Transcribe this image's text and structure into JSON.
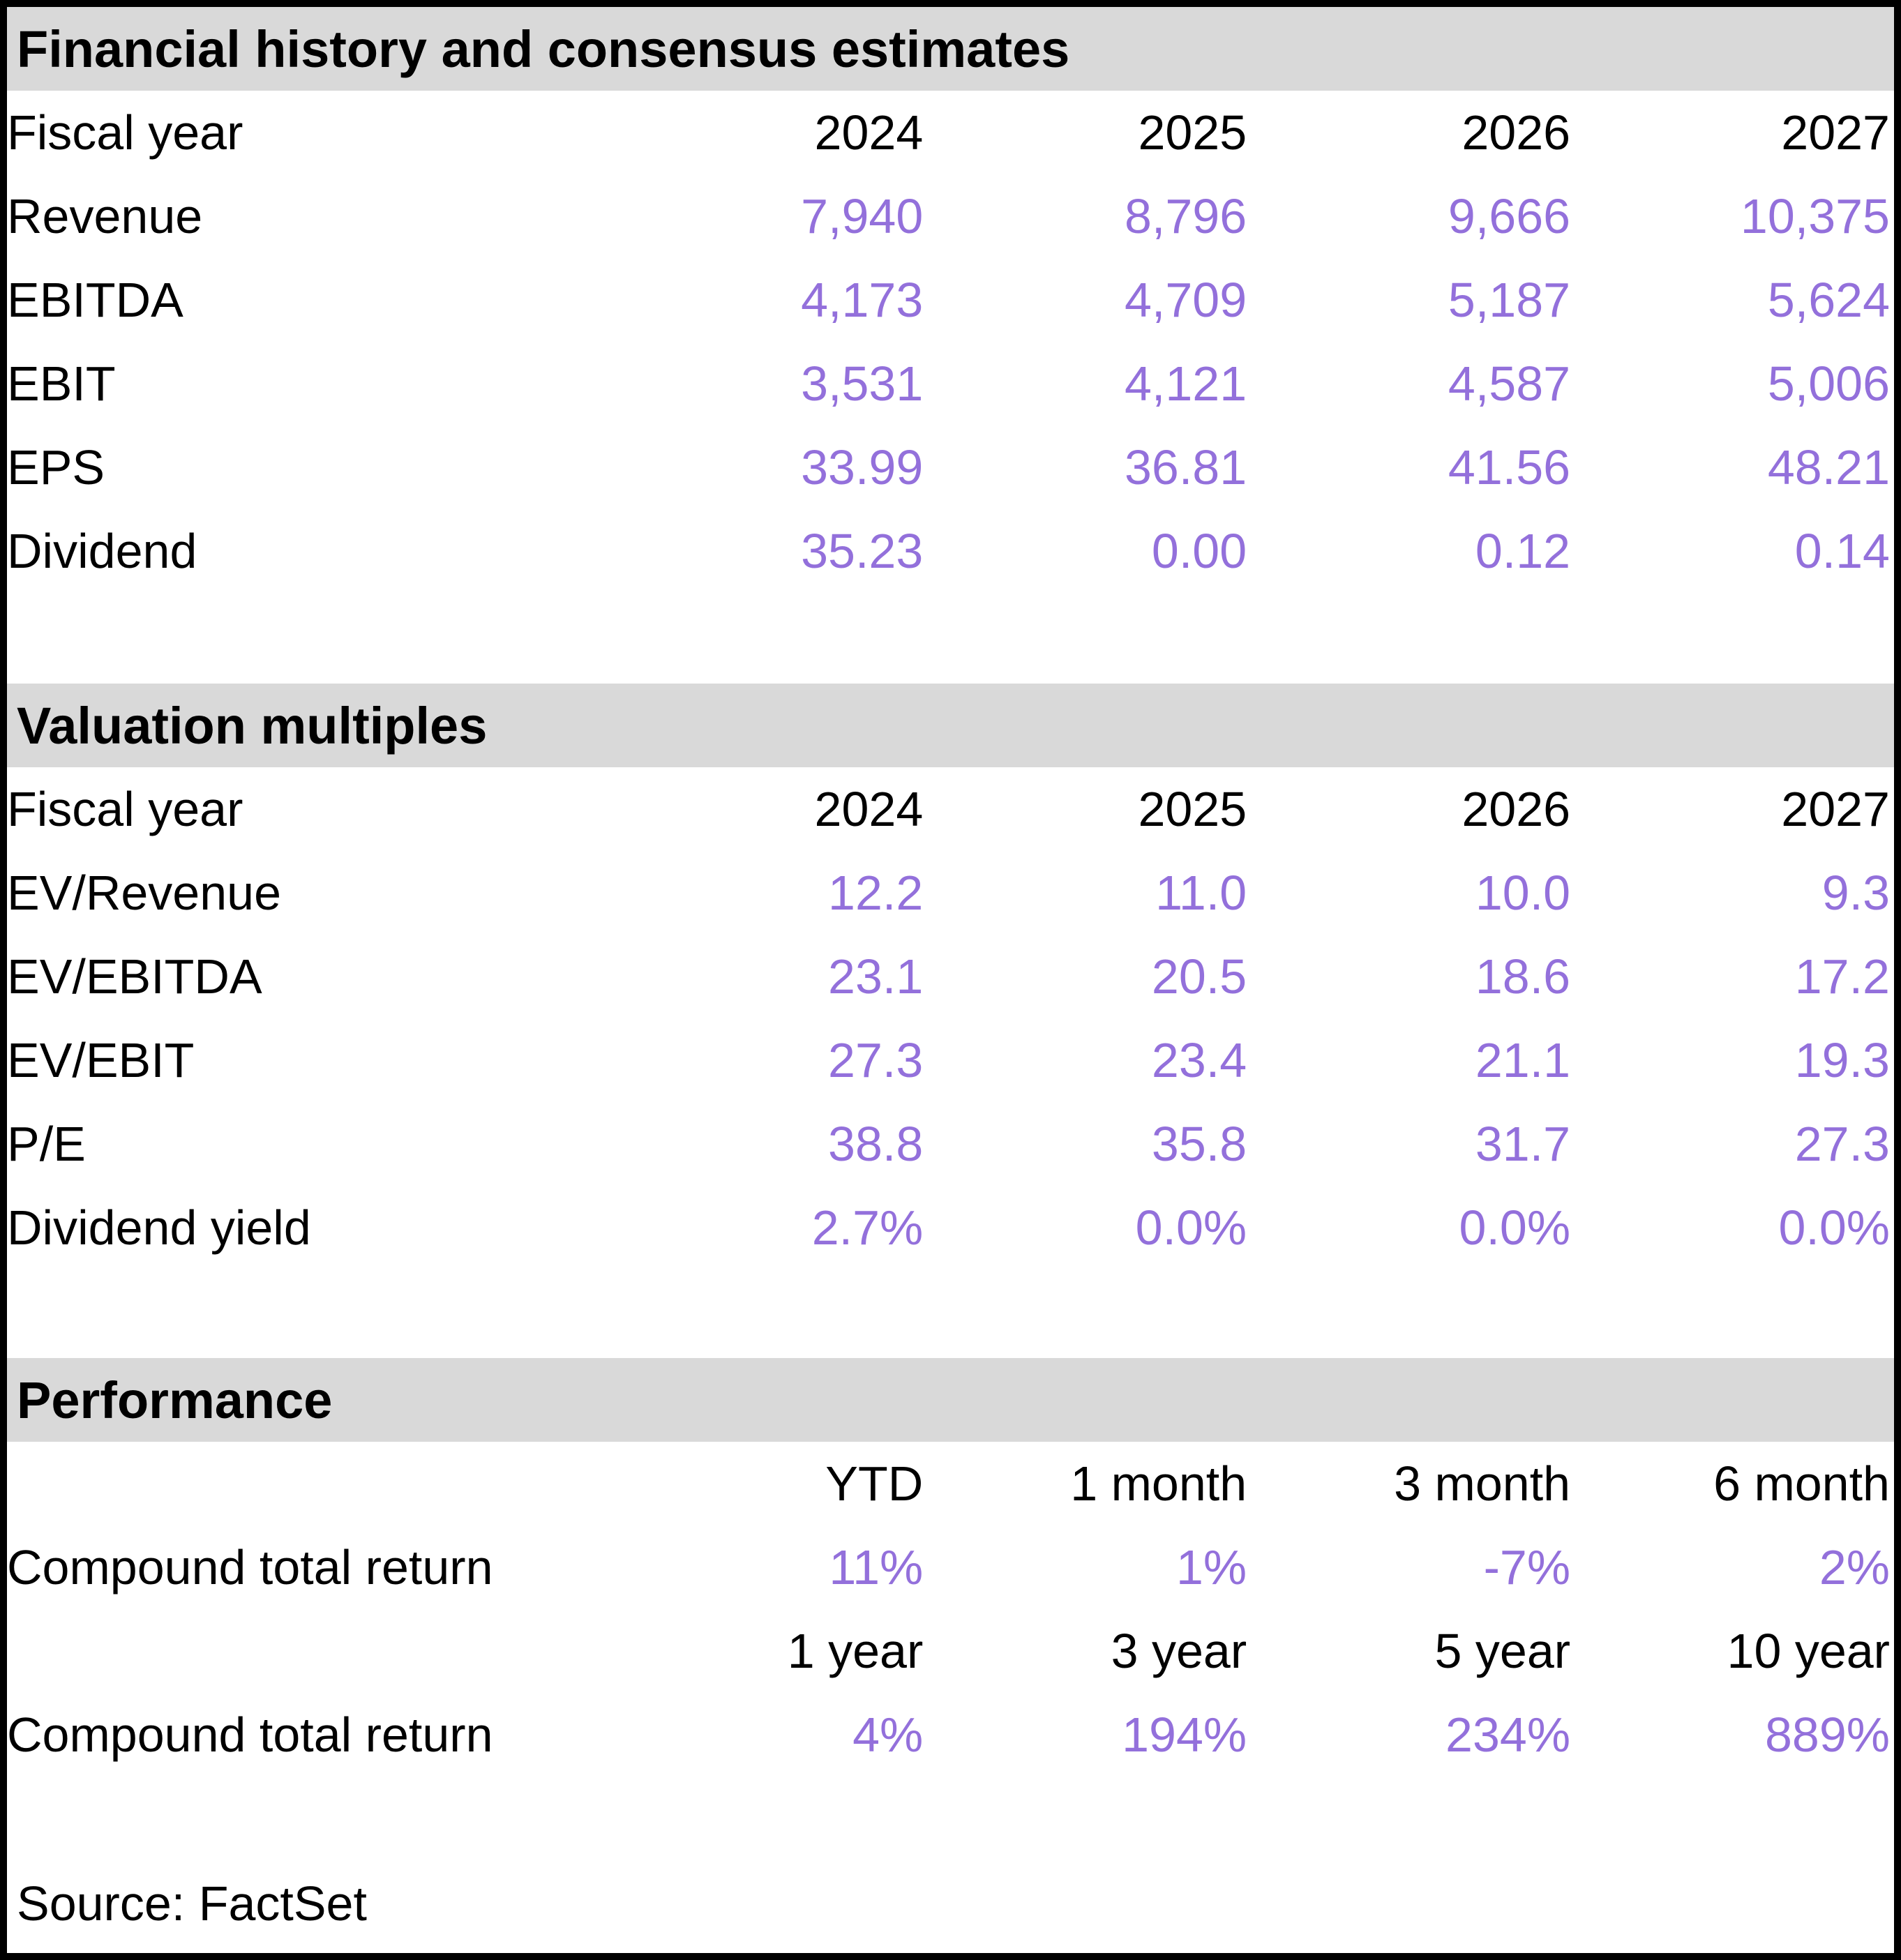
{
  "colors": {
    "section_header_bg": "#d9d9d9",
    "value_text": "#9370db",
    "label_text": "#000000",
    "page_border": "#000000"
  },
  "sections": {
    "financial_history": {
      "title": "Financial history and consensus estimates",
      "fiscal_year_label": "Fiscal year",
      "years": [
        "2024",
        "2025",
        "2026",
        "2027"
      ],
      "rows": [
        {
          "label": "Revenue",
          "values": [
            "7,940",
            "8,796",
            "9,666",
            "10,375"
          ]
        },
        {
          "label": "EBITDA",
          "values": [
            "4,173",
            "4,709",
            "5,187",
            "5,624"
          ]
        },
        {
          "label": "EBIT",
          "values": [
            "3,531",
            "4,121",
            "4,587",
            "5,006"
          ]
        },
        {
          "label": "EPS",
          "values": [
            "33.99",
            "36.81",
            "41.56",
            "48.21"
          ]
        },
        {
          "label": "Dividend",
          "values": [
            "35.23",
            "0.00",
            "0.12",
            "0.14"
          ]
        }
      ]
    },
    "valuation_multiples": {
      "title": "Valuation multiples",
      "fiscal_year_label": "Fiscal year",
      "years": [
        "2024",
        "2025",
        "2026",
        "2027"
      ],
      "rows": [
        {
          "label": "EV/Revenue",
          "values": [
            "12.2",
            "11.0",
            "10.0",
            "9.3"
          ]
        },
        {
          "label": "EV/EBITDA",
          "values": [
            "23.1",
            "20.5",
            "18.6",
            "17.2"
          ]
        },
        {
          "label": "EV/EBIT",
          "values": [
            "27.3",
            "23.4",
            "21.1",
            "19.3"
          ]
        },
        {
          "label": "P/E",
          "values": [
            "38.8",
            "35.8",
            "31.7",
            "27.3"
          ]
        },
        {
          "label": "Dividend yield",
          "values": [
            "2.7%",
            "0.0%",
            "0.0%",
            "0.0%"
          ]
        }
      ]
    },
    "performance": {
      "title": "Performance",
      "groups": [
        {
          "periods": [
            "YTD",
            "1 month",
            "3 month",
            "6 month"
          ],
          "label": "Compound total return",
          "values": [
            "11%",
            "1%",
            "-7%",
            "2%"
          ]
        },
        {
          "periods": [
            "1 year",
            "3 year",
            "5 year",
            "10 year"
          ],
          "label": "Compound total return",
          "values": [
            "4%",
            "194%",
            "234%",
            "889%"
          ]
        }
      ]
    }
  },
  "footer": {
    "source": "Source: FactSet"
  }
}
